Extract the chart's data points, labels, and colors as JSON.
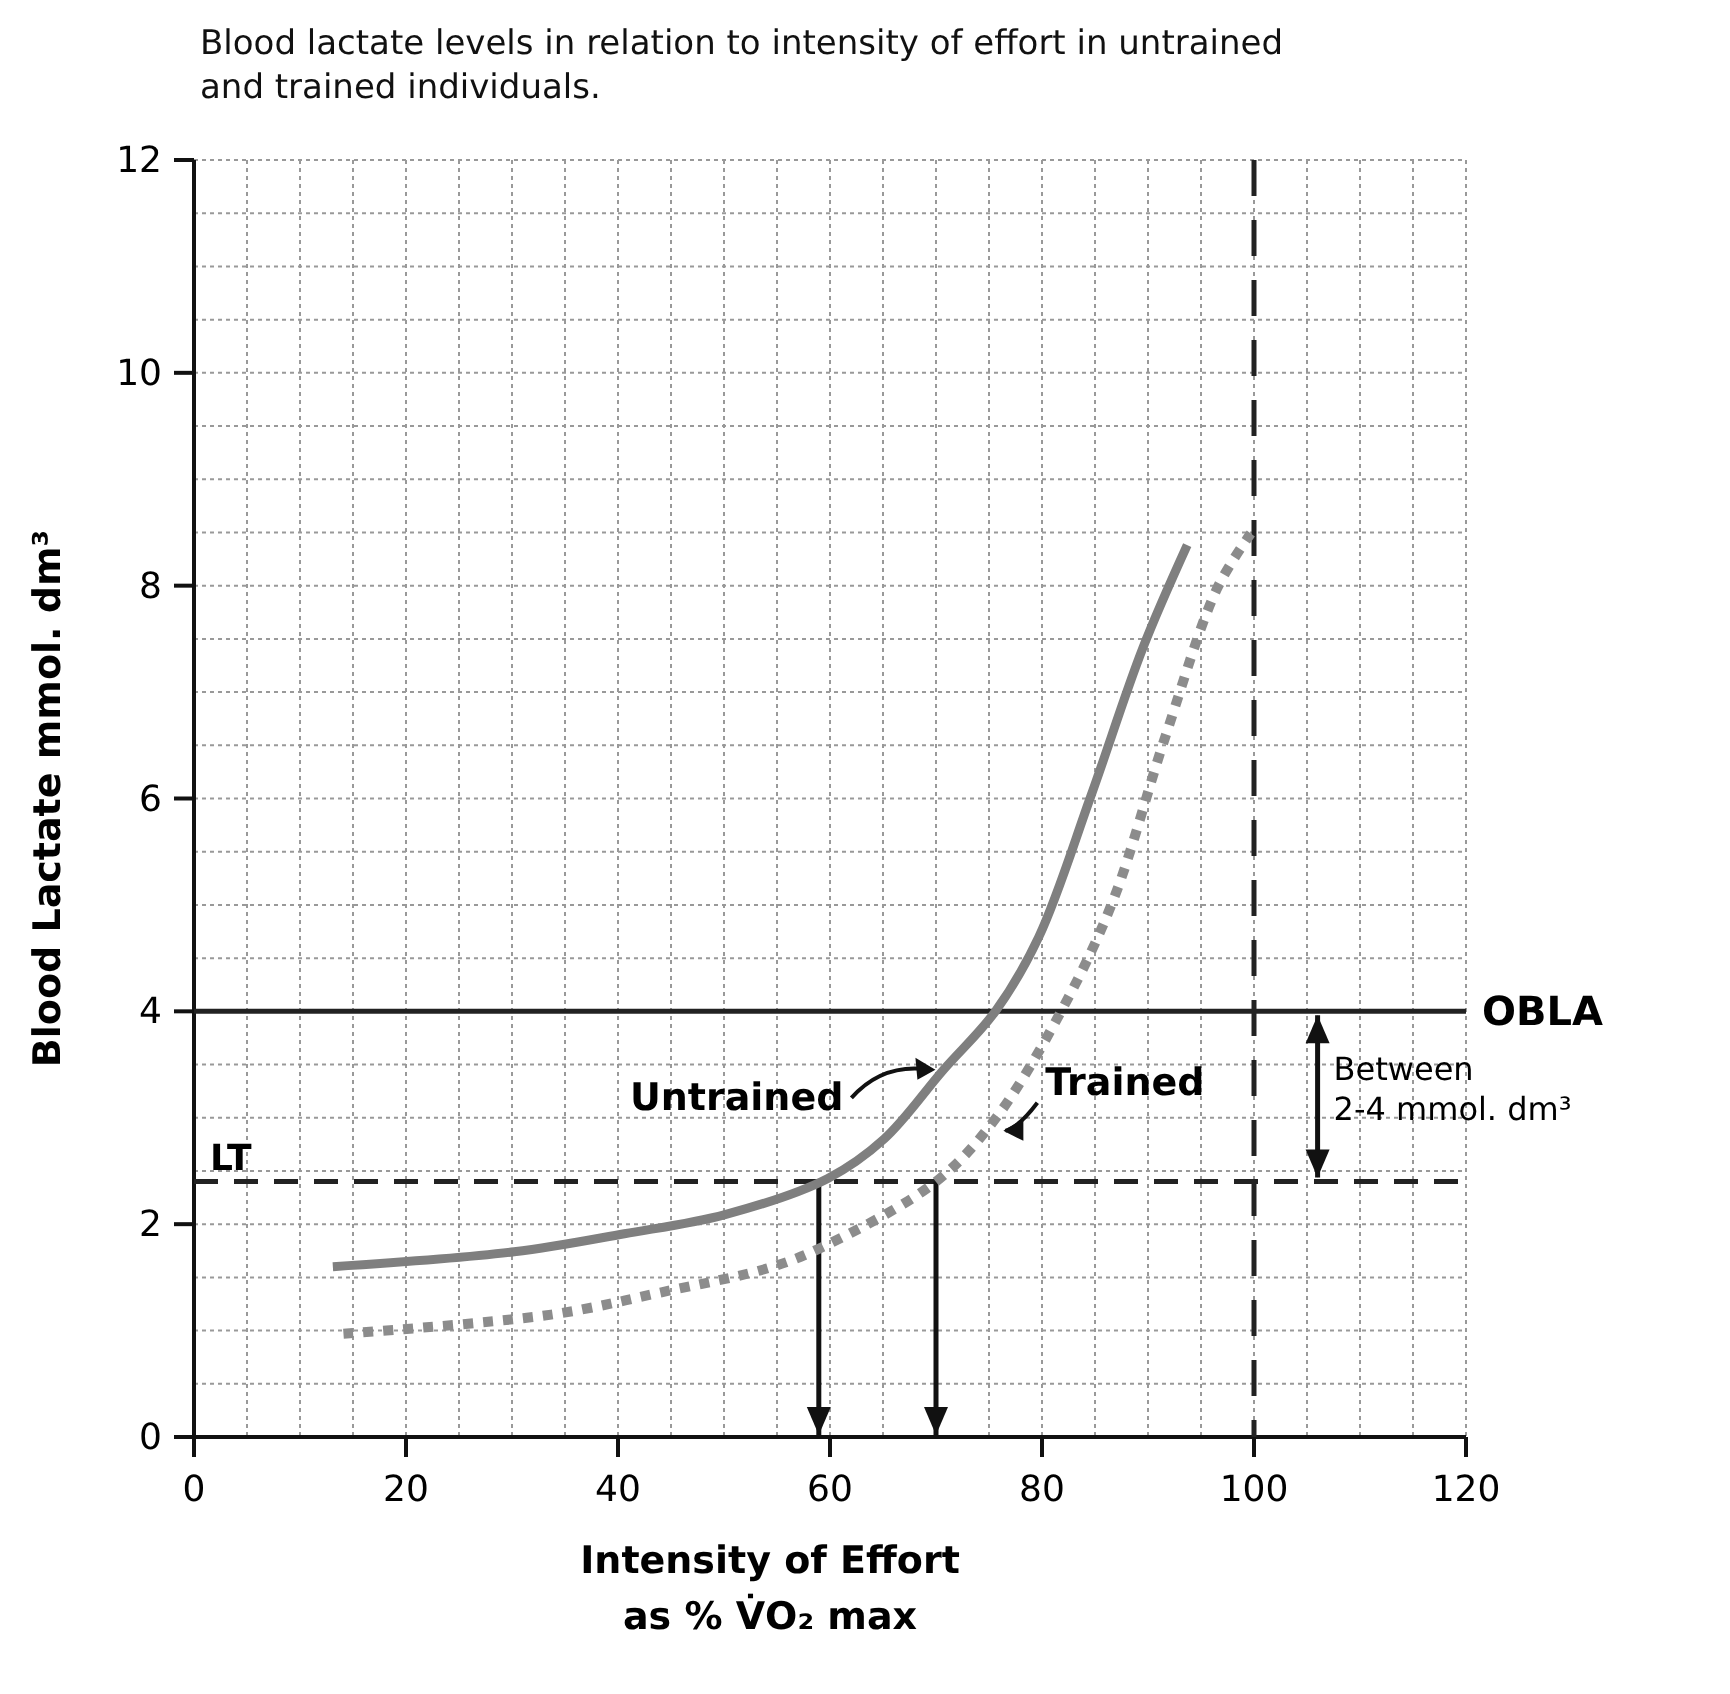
{
  "chart_data": {
    "type": "line",
    "title": "Blood lactate levels in relation to intensity of effort in untrained\nand trained individuals.",
    "xlabel": "Intensity of Effort\nas % V̇O₂ max",
    "ylabel": "Blood Lactate mmol. dm³",
    "xlim": [
      0,
      120
    ],
    "xticks": [
      0,
      20,
      40,
      60,
      80,
      100,
      120
    ],
    "ylim": [
      0,
      12
    ],
    "yticks": [
      0,
      2,
      4,
      6,
      8,
      10,
      12
    ],
    "grid": true,
    "series": [
      {
        "name": "Untrained",
        "color": "#7f7f7f",
        "line_style": "solid",
        "x": [
          13.1,
          30.2,
          40.6,
          50.1,
          59.8,
          65.1,
          70.7,
          75.6,
          79.7,
          84.6,
          89.5,
          93.7
        ],
        "values": [
          1.6,
          1.74,
          1.91,
          2.09,
          2.43,
          2.8,
          3.45,
          4.0,
          4.7,
          6.02,
          7.41,
          8.38
        ]
      },
      {
        "name": "Trained",
        "color": "#8c8c8c",
        "line_style": "dotted",
        "x": [
          14.1,
          33.7,
          44.1,
          54.6,
          59.8,
          70,
          75.6,
          81.8,
          86.7,
          91.6,
          96.5,
          99.7
        ],
        "values": [
          0.97,
          1.15,
          1.36,
          1.6,
          1.81,
          2.4,
          2.99,
          4.0,
          5.04,
          6.57,
          7.97,
          8.49
        ]
      }
    ],
    "ref_lines": [
      {
        "axis": "y",
        "value": 4,
        "label": "OBLA",
        "line_style": "solid"
      },
      {
        "axis": "y",
        "value": 2.4,
        "label": "LT",
        "line_style": "dashed"
      },
      {
        "axis": "x",
        "value": 100,
        "line_style": "dashed"
      }
    ],
    "annotations": [
      {
        "text": "Between\n2-4 mmol. dm³",
        "x": 106,
        "y": 4
      }
    ]
  }
}
